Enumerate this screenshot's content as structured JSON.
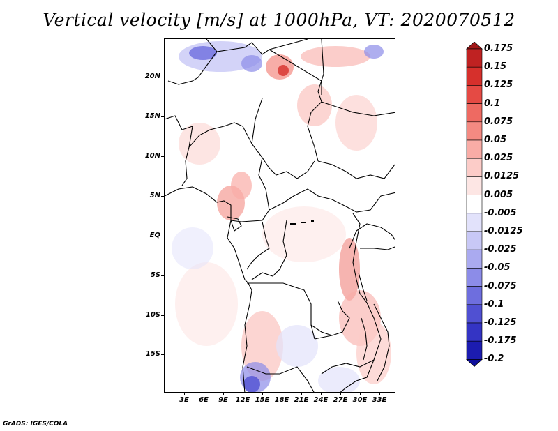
{
  "title": "Vertical velocity [m/s] at 1000hPa, VT: 2020070512",
  "footer": "GrADS: IGES/COLA",
  "map": {
    "lat_labels": [
      "20N",
      "15N",
      "10N",
      "5N",
      "EQ",
      "5S",
      "10S",
      "15S"
    ],
    "lon_labels": [
      "3E",
      "6E",
      "9E",
      "12E",
      "15E",
      "18E",
      "21E",
      "24E",
      "27E",
      "30E",
      "33E"
    ]
  },
  "colorbar": {
    "labels": [
      "0.175",
      "0.15",
      "0.125",
      "0.1",
      "0.075",
      "0.05",
      "0.025",
      "0.0125",
      "0.005",
      "-0.005",
      "-0.0125",
      "-0.025",
      "-0.05",
      "-0.075",
      "-0.1",
      "-0.125",
      "-0.175",
      "-0.2"
    ],
    "colors": [
      "#a01818",
      "#bf2222",
      "#d6302c",
      "#e54a44",
      "#ee6a62",
      "#f48a82",
      "#f9aca6",
      "#fcccc8",
      "#fde6e4",
      "#ffffff",
      "#e2e2fb",
      "#c8c8f6",
      "#aaaaf0",
      "#8c8ce8",
      "#6e6ede",
      "#5050d2",
      "#3434c4",
      "#1c1cb0",
      "#10109c"
    ]
  }
}
